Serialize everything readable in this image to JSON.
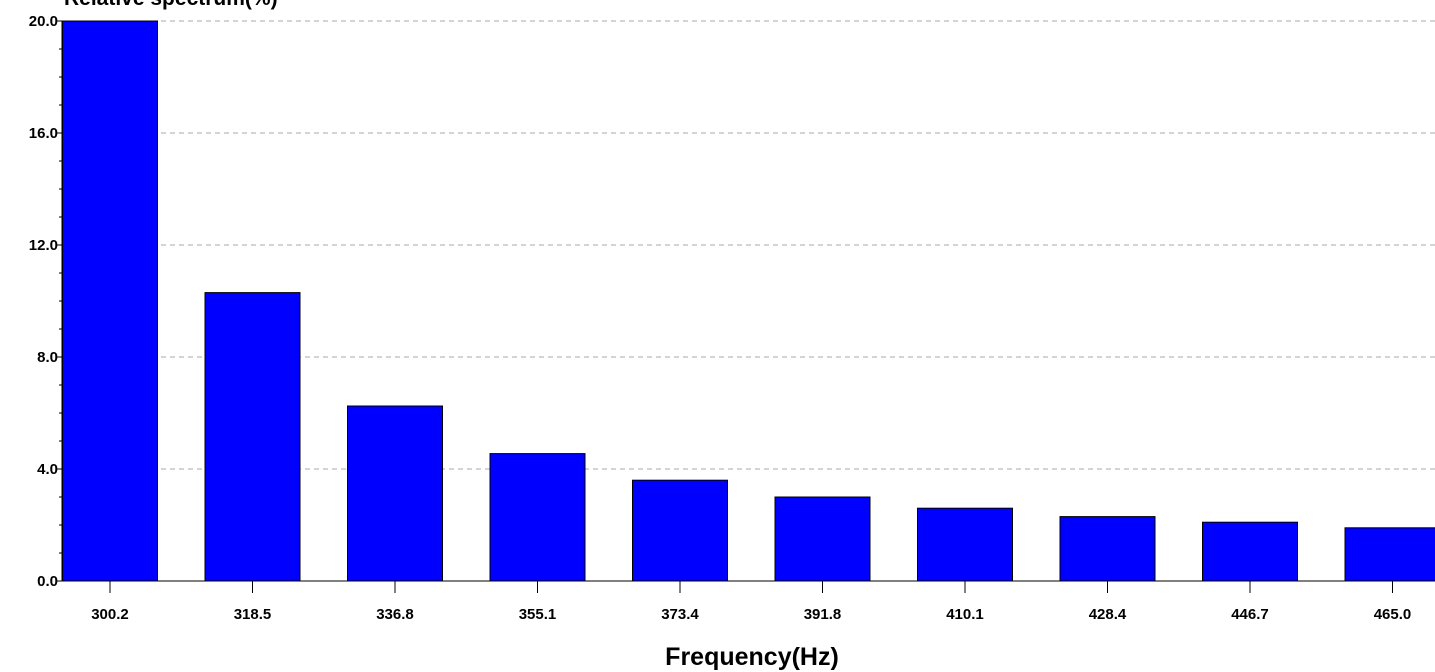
{
  "chart_data": {
    "type": "bar",
    "title": "",
    "ylabel": "Relative spectrum(%)",
    "xlabel": "Frequency(Hz)",
    "categories": [
      "300.2",
      "318.5",
      "336.8",
      "355.1",
      "373.4",
      "391.8",
      "410.1",
      "428.4",
      "446.7",
      "465.0"
    ],
    "values": [
      20.0,
      10.3,
      6.25,
      4.55,
      3.6,
      3.0,
      2.6,
      2.3,
      2.1,
      1.9
    ],
    "ylim": [
      0,
      20
    ],
    "yticks": [
      "0.0",
      "4.0",
      "8.0",
      "12.0",
      "16.0",
      "20.0"
    ],
    "grid": "horizontal-dashed",
    "legend": "none",
    "colors": {
      "bar_fill": "#0000ff",
      "bar_stroke": "#000000",
      "grid": "#aaaaaa",
      "axis": "#000000"
    }
  }
}
